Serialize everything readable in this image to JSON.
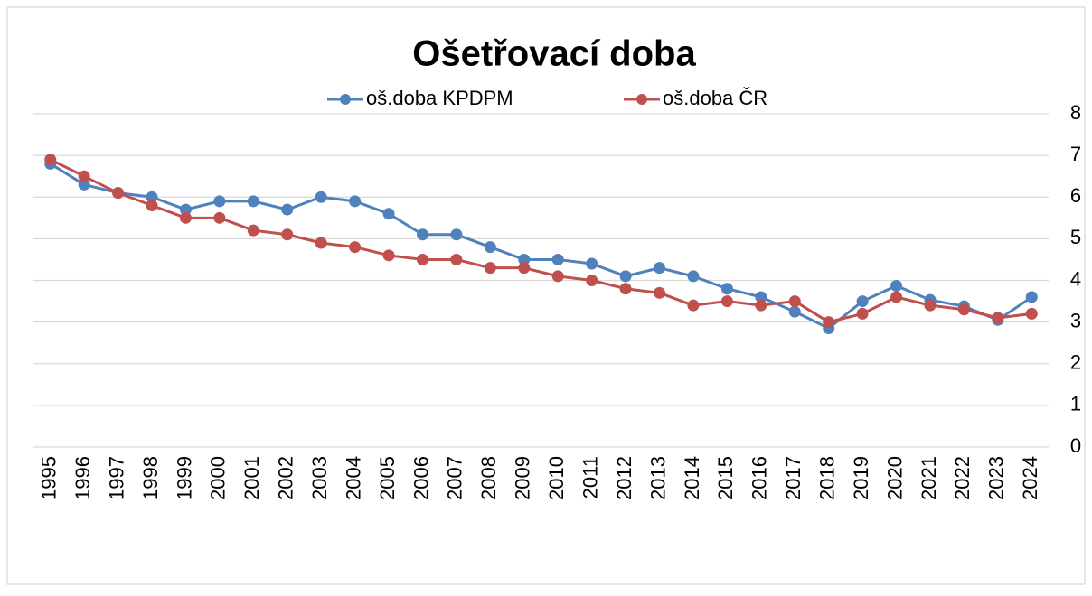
{
  "chart_data": {
    "type": "line",
    "title": "Ošetřovací doba",
    "categories": [
      "1995",
      "1996",
      "1997",
      "1998",
      "1999",
      "2000",
      "2001",
      "2002",
      "2003",
      "2004",
      "2005",
      "2006",
      "2007",
      "2008",
      "2009",
      "2010",
      "2011",
      "2012",
      "2013",
      "2014",
      "2015",
      "2016",
      "2017",
      "2018",
      "2019",
      "2020",
      "2021",
      "2022",
      "2023",
      "2024"
    ],
    "series": [
      {
        "name": "oš.doba KPDPM",
        "color": "#4f81bd",
        "values": [
          6.8,
          6.3,
          6.1,
          6.0,
          5.7,
          5.9,
          5.9,
          5.7,
          6.0,
          5.9,
          5.6,
          5.1,
          5.1,
          4.8,
          4.5,
          4.5,
          4.4,
          4.1,
          4.3,
          4.1,
          3.8,
          3.6,
          3.25,
          2.85,
          3.5,
          3.87,
          3.53,
          3.38,
          3.05,
          3.6
        ]
      },
      {
        "name": "oš.doba ČR",
        "color": "#c0504d",
        "values": [
          6.9,
          6.5,
          6.1,
          5.8,
          5.5,
          5.5,
          5.2,
          5.1,
          4.9,
          4.8,
          4.6,
          4.5,
          4.5,
          4.3,
          4.3,
          4.1,
          4.0,
          3.8,
          3.7,
          3.4,
          3.5,
          3.4,
          3.5,
          3.0,
          3.2,
          3.6,
          3.4,
          3.3,
          3.1,
          3.2
        ]
      }
    ],
    "ylim": [
      0,
      8
    ],
    "yticks": [
      0,
      1,
      2,
      3,
      4,
      5,
      6,
      7,
      8
    ],
    "grid": true,
    "y_axis_side": "right",
    "legend": "top"
  }
}
